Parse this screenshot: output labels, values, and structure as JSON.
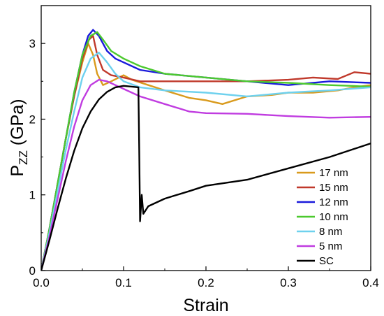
{
  "chart_data": {
    "type": "line",
    "xlabel": "Strain",
    "ylabel_main": "P",
    "ylabel_sub": "ZZ",
    "ylabel_unit": " (GPa)",
    "xlim": [
      0.0,
      0.4
    ],
    "ylim": [
      0,
      3.5
    ],
    "xticks": [
      0.0,
      0.1,
      0.2,
      0.3,
      0.4
    ],
    "xtick_labels": [
      "0.0",
      "0.1",
      "0.2",
      "0.3",
      "0.4"
    ],
    "yticks": [
      0,
      1,
      2,
      3
    ],
    "ytick_labels": [
      "0",
      "1",
      "2",
      "3"
    ],
    "grid": false,
    "legend_position": "bottom-right",
    "series": [
      {
        "name": "17 nm",
        "color": "#d99a1c",
        "points": [
          [
            0,
            0
          ],
          [
            0.01,
            0.55
          ],
          [
            0.02,
            1.15
          ],
          [
            0.03,
            1.75
          ],
          [
            0.04,
            2.3
          ],
          [
            0.05,
            2.75
          ],
          [
            0.057,
            3.0
          ],
          [
            0.063,
            2.85
          ],
          [
            0.068,
            2.6
          ],
          [
            0.075,
            2.45
          ],
          [
            0.085,
            2.5
          ],
          [
            0.1,
            2.58
          ],
          [
            0.11,
            2.52
          ],
          [
            0.13,
            2.45
          ],
          [
            0.15,
            2.38
          ],
          [
            0.18,
            2.28
          ],
          [
            0.2,
            2.25
          ],
          [
            0.22,
            2.2
          ],
          [
            0.25,
            2.3
          ],
          [
            0.28,
            2.32
          ],
          [
            0.3,
            2.35
          ],
          [
            0.33,
            2.35
          ],
          [
            0.36,
            2.38
          ],
          [
            0.38,
            2.42
          ],
          [
            0.4,
            2.45
          ]
        ]
      },
      {
        "name": "15 nm",
        "color": "#c0392b",
        "points": [
          [
            0,
            0
          ],
          [
            0.01,
            0.55
          ],
          [
            0.02,
            1.15
          ],
          [
            0.03,
            1.75
          ],
          [
            0.04,
            2.3
          ],
          [
            0.05,
            2.8
          ],
          [
            0.058,
            3.05
          ],
          [
            0.063,
            3.1
          ],
          [
            0.068,
            2.85
          ],
          [
            0.075,
            2.65
          ],
          [
            0.085,
            2.58
          ],
          [
            0.1,
            2.55
          ],
          [
            0.12,
            2.5
          ],
          [
            0.15,
            2.5
          ],
          [
            0.2,
            2.5
          ],
          [
            0.25,
            2.5
          ],
          [
            0.3,
            2.52
          ],
          [
            0.33,
            2.55
          ],
          [
            0.36,
            2.53
          ],
          [
            0.38,
            2.62
          ],
          [
            0.4,
            2.6
          ]
        ]
      },
      {
        "name": "12 nm",
        "color": "#1a1adb",
        "points": [
          [
            0,
            0
          ],
          [
            0.01,
            0.55
          ],
          [
            0.02,
            1.15
          ],
          [
            0.03,
            1.75
          ],
          [
            0.04,
            2.35
          ],
          [
            0.05,
            2.85
          ],
          [
            0.057,
            3.1
          ],
          [
            0.063,
            3.18
          ],
          [
            0.07,
            3.1
          ],
          [
            0.08,
            2.9
          ],
          [
            0.09,
            2.8
          ],
          [
            0.1,
            2.75
          ],
          [
            0.12,
            2.65
          ],
          [
            0.15,
            2.6
          ],
          [
            0.2,
            2.55
          ],
          [
            0.25,
            2.5
          ],
          [
            0.3,
            2.45
          ],
          [
            0.35,
            2.5
          ],
          [
            0.4,
            2.48
          ]
        ]
      },
      {
        "name": "10 nm",
        "color": "#4cc92e",
        "points": [
          [
            0,
            0
          ],
          [
            0.01,
            0.55
          ],
          [
            0.02,
            1.15
          ],
          [
            0.03,
            1.75
          ],
          [
            0.04,
            2.35
          ],
          [
            0.05,
            2.85
          ],
          [
            0.06,
            3.1
          ],
          [
            0.068,
            3.15
          ],
          [
            0.075,
            3.05
          ],
          [
            0.085,
            2.9
          ],
          [
            0.1,
            2.8
          ],
          [
            0.12,
            2.7
          ],
          [
            0.15,
            2.6
          ],
          [
            0.2,
            2.55
          ],
          [
            0.25,
            2.5
          ],
          [
            0.3,
            2.48
          ],
          [
            0.35,
            2.45
          ],
          [
            0.4,
            2.43
          ]
        ]
      },
      {
        "name": "8 nm",
        "color": "#6ed1ee",
        "points": [
          [
            0,
            0
          ],
          [
            0.01,
            0.5
          ],
          [
            0.02,
            1.05
          ],
          [
            0.03,
            1.6
          ],
          [
            0.04,
            2.1
          ],
          [
            0.05,
            2.55
          ],
          [
            0.06,
            2.8
          ],
          [
            0.07,
            2.88
          ],
          [
            0.08,
            2.75
          ],
          [
            0.09,
            2.6
          ],
          [
            0.1,
            2.5
          ],
          [
            0.12,
            2.42
          ],
          [
            0.15,
            2.38
          ],
          [
            0.2,
            2.35
          ],
          [
            0.25,
            2.3
          ],
          [
            0.3,
            2.35
          ],
          [
            0.35,
            2.38
          ],
          [
            0.4,
            2.42
          ]
        ]
      },
      {
        "name": "5 nm",
        "color": "#c03ce0",
        "points": [
          [
            0,
            0
          ],
          [
            0.01,
            0.45
          ],
          [
            0.02,
            0.95
          ],
          [
            0.03,
            1.45
          ],
          [
            0.04,
            1.9
          ],
          [
            0.05,
            2.25
          ],
          [
            0.06,
            2.45
          ],
          [
            0.07,
            2.52
          ],
          [
            0.08,
            2.5
          ],
          [
            0.1,
            2.4
          ],
          [
            0.12,
            2.3
          ],
          [
            0.15,
            2.2
          ],
          [
            0.18,
            2.1
          ],
          [
            0.2,
            2.08
          ],
          [
            0.25,
            2.07
          ],
          [
            0.3,
            2.04
          ],
          [
            0.35,
            2.02
          ],
          [
            0.4,
            2.03
          ]
        ]
      },
      {
        "name": "SC",
        "color": "#000000",
        "points": [
          [
            0,
            0
          ],
          [
            0.01,
            0.4
          ],
          [
            0.02,
            0.82
          ],
          [
            0.03,
            1.22
          ],
          [
            0.04,
            1.58
          ],
          [
            0.05,
            1.88
          ],
          [
            0.06,
            2.1
          ],
          [
            0.07,
            2.26
          ],
          [
            0.08,
            2.36
          ],
          [
            0.09,
            2.42
          ],
          [
            0.1,
            2.44
          ],
          [
            0.11,
            2.43
          ],
          [
            0.118,
            2.42
          ],
          [
            0.119,
            1.6
          ],
          [
            0.12,
            0.65
          ],
          [
            0.122,
            1.0
          ],
          [
            0.124,
            0.75
          ],
          [
            0.13,
            0.85
          ],
          [
            0.15,
            0.95
          ],
          [
            0.18,
            1.05
          ],
          [
            0.2,
            1.12
          ],
          [
            0.25,
            1.2
          ],
          [
            0.3,
            1.35
          ],
          [
            0.35,
            1.5
          ],
          [
            0.4,
            1.68
          ]
        ]
      }
    ]
  }
}
